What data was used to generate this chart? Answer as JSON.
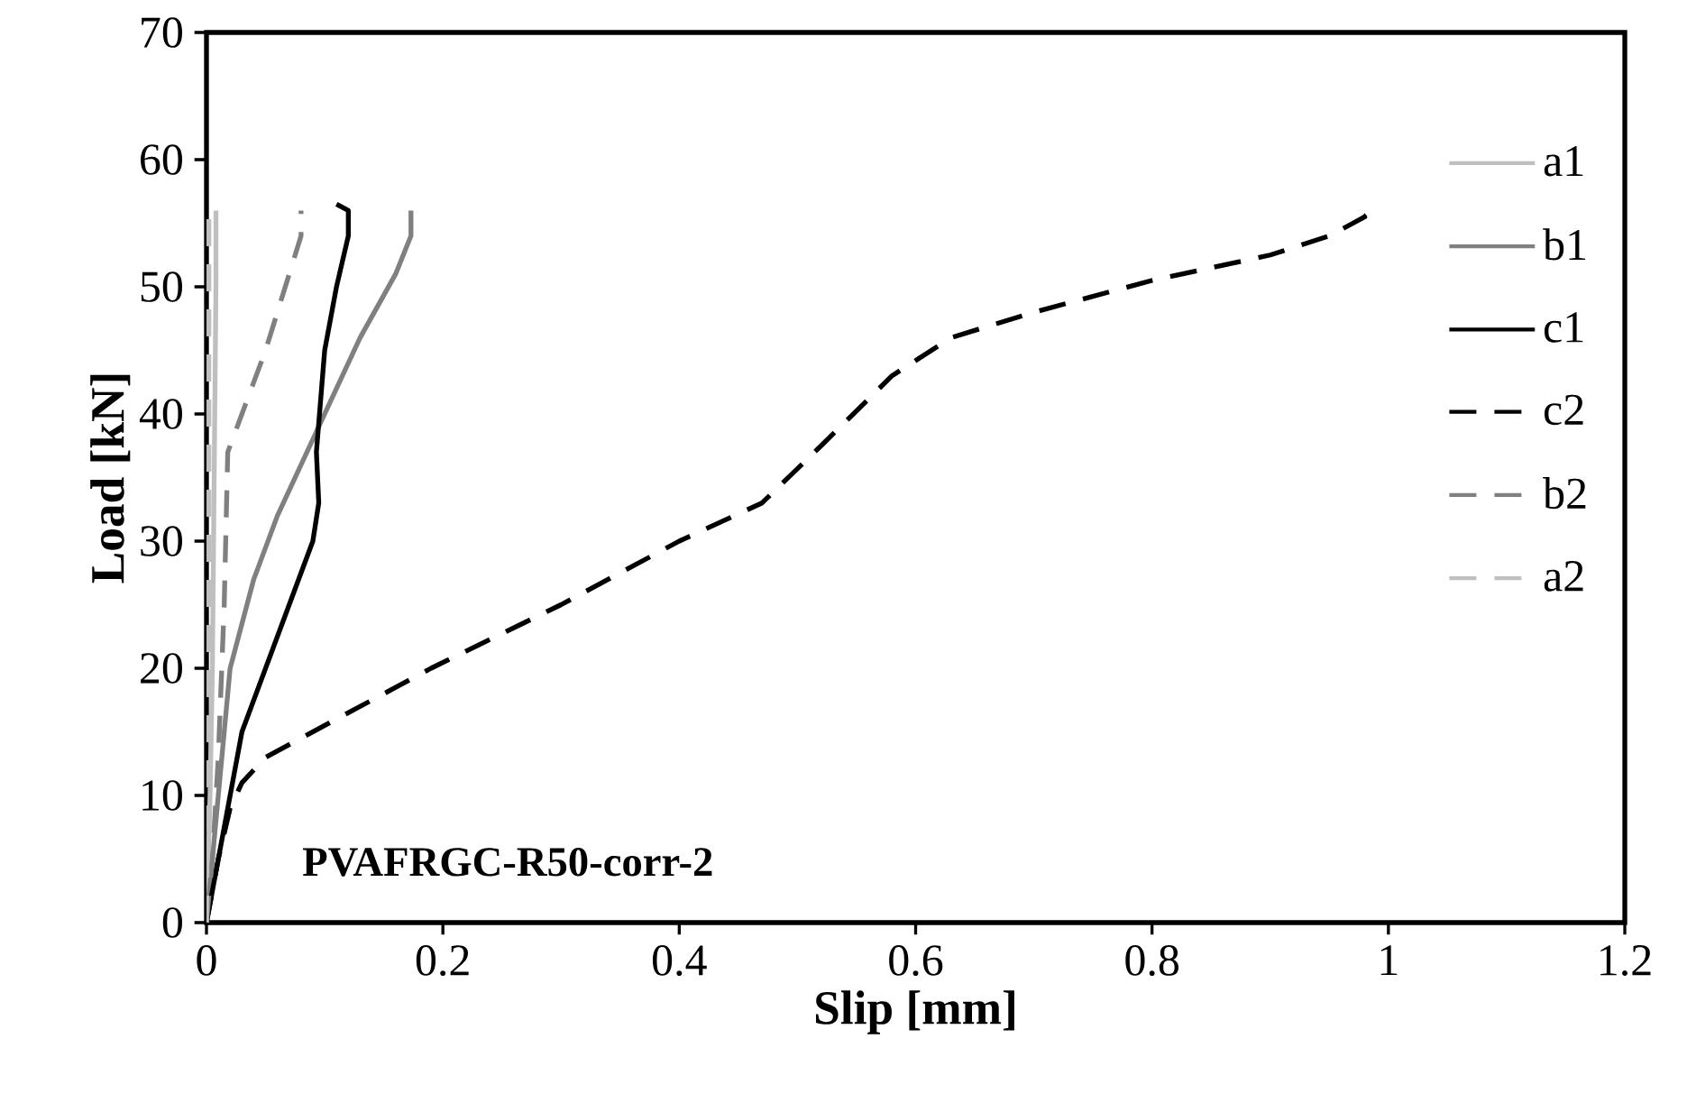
{
  "chart_data": {
    "type": "line",
    "xlabel": "Slip [mm]",
    "ylabel": "Load [kN]",
    "annotations": [
      "PVAFRGC-R50-corr-2"
    ],
    "xlim": [
      0,
      1.2
    ],
    "xticks": [
      0,
      0.2,
      0.4,
      0.6,
      0.8,
      1,
      1.2
    ],
    "ylim": [
      0,
      70
    ],
    "yticks": [
      0,
      10,
      20,
      30,
      40,
      50,
      60,
      70
    ],
    "grid": false,
    "legend": "right",
    "marker": "none",
    "series": [
      {
        "name": "a1",
        "color": "#bfbfbf",
        "line_style": "solid",
        "x": [
          0,
          0.003,
          0.005,
          0.006,
          0.007,
          0.008,
          0.008
        ],
        "values": [
          0,
          10,
          20,
          30,
          40,
          50,
          56
        ]
      },
      {
        "name": "b1",
        "color": "#808080",
        "line_style": "solid",
        "x": [
          0,
          0.01,
          0.02,
          0.04,
          0.06,
          0.09,
          0.13,
          0.16,
          0.173,
          0.173
        ],
        "values": [
          0,
          10,
          20,
          27,
          32,
          38,
          46,
          51,
          54,
          56
        ]
      },
      {
        "name": "c1",
        "color": "#000000",
        "line_style": "solid",
        "x": [
          0,
          0.01,
          0.02,
          0.03,
          0.05,
          0.07,
          0.09,
          0.095,
          0.093,
          0.1,
          0.11,
          0.12,
          0.12,
          0.11
        ],
        "values": [
          0,
          5,
          10,
          15,
          20,
          25,
          30,
          33,
          37,
          45,
          50,
          54,
          56,
          56.5
        ]
      },
      {
        "name": "c2",
        "color": "#000000",
        "line_style": "dashed",
        "x": [
          0,
          0.01,
          0.02,
          0.03,
          0.05,
          0.1,
          0.19,
          0.3,
          0.4,
          0.47,
          0.52,
          0.58,
          0.63,
          0.7,
          0.8,
          0.9,
          0.95,
          0.98,
          0.975
        ],
        "values": [
          0,
          5,
          9,
          11,
          13,
          15.5,
          20,
          25,
          30,
          33,
          37.5,
          43,
          46,
          48,
          50.5,
          52.5,
          54,
          55.5,
          56
        ]
      },
      {
        "name": "b2",
        "color": "#808080",
        "line_style": "dashed",
        "x": [
          0,
          0.005,
          0.01,
          0.015,
          0.018,
          0.05,
          0.08,
          0.08
        ],
        "values": [
          0,
          5,
          13,
          25,
          37,
          45,
          54,
          56
        ]
      },
      {
        "name": "a2",
        "color": "#bfbfbf",
        "line_style": "dashed",
        "x": [
          0,
          0.001,
          0.002,
          0.002,
          0.002
        ],
        "values": [
          0,
          10,
          25,
          45,
          56
        ]
      }
    ]
  }
}
